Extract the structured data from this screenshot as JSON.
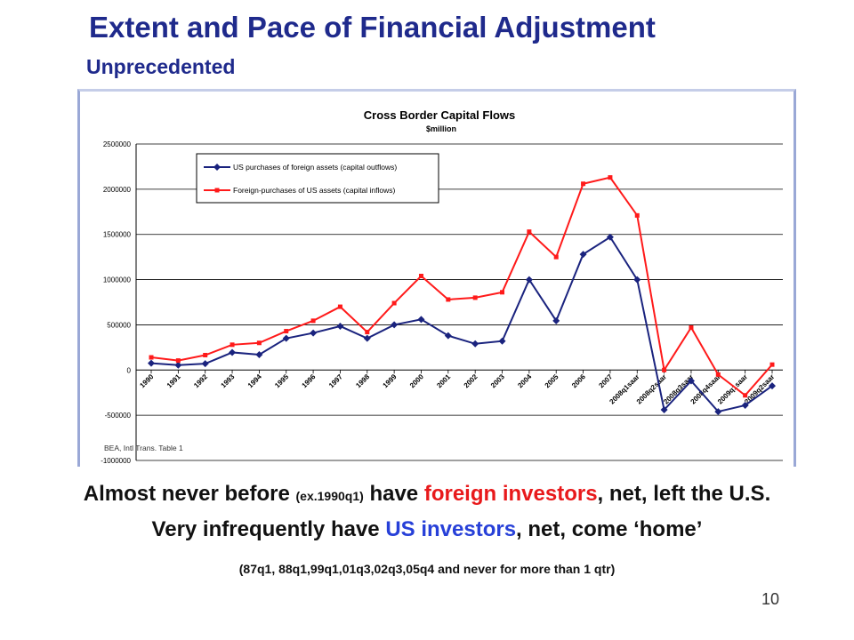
{
  "slide": {
    "title": "Extent and Pace of Financial Adjustment",
    "subtitle": "Unprecedented",
    "page_number": "10"
  },
  "caption": {
    "line1_a": "Almost never before",
    "line1_paren": "(ex.1990q1)",
    "line1_b": "have",
    "line1_red": "foreign investors",
    "line1_c": ", net, left the U.S.",
    "line2_a": "Very infrequently have",
    "line2_blue": "US investors",
    "line2_b": ", net, come ‘home’",
    "line3": "(87q1, 88q1,99q1,01q3,02q3,05q4 and never for more than 1 qtr)"
  },
  "chart_data": {
    "type": "line",
    "title": "Cross Border Capital Flows",
    "subtitle": "$million",
    "source_note": "BEA, Intl Trans. Table 1",
    "ylim": [
      -1000000,
      2500000
    ],
    "yticks": [
      2500000,
      2000000,
      1500000,
      1000000,
      500000,
      0,
      -500000,
      -1000000
    ],
    "grid": true,
    "legend_position": "top-left",
    "categories": [
      "1990",
      "1991",
      "1992",
      "1993",
      "1994",
      "1995",
      "1996",
      "1997",
      "1998",
      "1999",
      "2000",
      "2001",
      "2002",
      "2003",
      "2004",
      "2005",
      "2006",
      "2007",
      "2008q1saar",
      "2008q2saar",
      "2008q3saar",
      "2008q4saar",
      "2009q1saar",
      "2009q2saar"
    ],
    "series": [
      {
        "name": "US purchases of foreign assets (capital outflows)",
        "color": "#1a237e",
        "marker": "diamond",
        "values": [
          75000,
          55000,
          70000,
          195000,
          170000,
          350000,
          410000,
          485000,
          350000,
          500000,
          560000,
          380000,
          290000,
          320000,
          1000000,
          545000,
          1280000,
          1470000,
          1000000,
          -440000,
          -120000,
          -460000,
          -390000,
          -175000
        ]
      },
      {
        "name": "Foreign-purchases of US assets (capital inflows)",
        "color": "#ff1a1a",
        "marker": "square",
        "values": [
          140000,
          105000,
          165000,
          280000,
          300000,
          430000,
          545000,
          700000,
          420000,
          740000,
          1040000,
          780000,
          800000,
          860000,
          1530000,
          1250000,
          2060000,
          2130000,
          1710000,
          0,
          470000,
          -50000,
          -280000,
          60000
        ]
      }
    ]
  }
}
